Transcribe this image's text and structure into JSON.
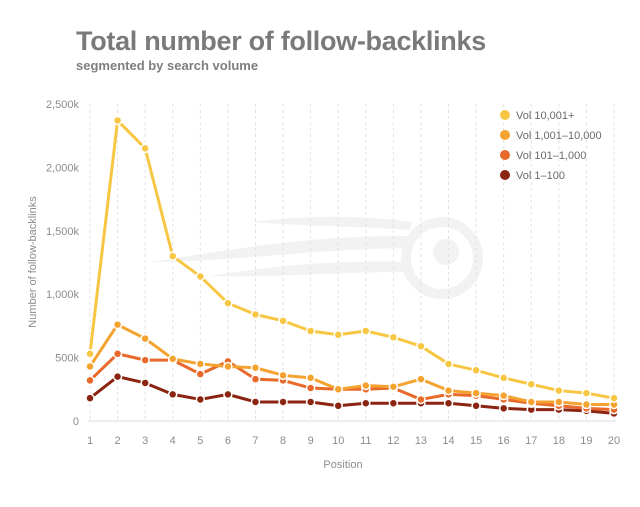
{
  "chart_data": {
    "type": "line",
    "title": "Total number of follow-backlinks",
    "subtitle": "segmented by search volume",
    "xlabel": "Position",
    "ylabel": "Number of follow-backlinks",
    "x": [
      1,
      2,
      3,
      4,
      5,
      6,
      7,
      8,
      9,
      10,
      11,
      12,
      13,
      14,
      15,
      16,
      17,
      18,
      19,
      20
    ],
    "ylim": [
      0,
      2500000
    ],
    "yticks": [
      0,
      500000,
      1000000,
      1500000,
      2000000,
      2500000
    ],
    "ytick_labels": [
      "0",
      "500k",
      "1,000k",
      "1,500k",
      "2,000k",
      "2,500k"
    ],
    "grid": "vertical dashed",
    "legend_position": "top-right",
    "series": [
      {
        "name": "Vol 10,001+",
        "color": "#f7c744",
        "values": [
          530000,
          2370000,
          2150000,
          1300000,
          1140000,
          930000,
          840000,
          790000,
          710000,
          680000,
          710000,
          660000,
          590000,
          450000,
          400000,
          340000,
          290000,
          240000,
          220000,
          180000
        ]
      },
      {
        "name": "Vol 1,001–10,000",
        "color": "#f5a330",
        "values": [
          430000,
          760000,
          650000,
          490000,
          450000,
          430000,
          420000,
          360000,
          340000,
          250000,
          280000,
          270000,
          330000,
          240000,
          220000,
          200000,
          150000,
          150000,
          130000,
          130000
        ]
      },
      {
        "name": "Vol 101–1,000",
        "color": "#e8692a",
        "values": [
          320000,
          530000,
          480000,
          480000,
          370000,
          470000,
          330000,
          320000,
          260000,
          250000,
          250000,
          260000,
          170000,
          210000,
          200000,
          170000,
          140000,
          120000,
          100000,
          90000
        ]
      },
      {
        "name": "Vol 1–100",
        "color": "#8b2410",
        "values": [
          180000,
          350000,
          300000,
          210000,
          170000,
          210000,
          150000,
          150000,
          150000,
          120000,
          140000,
          140000,
          140000,
          140000,
          120000,
          100000,
          90000,
          90000,
          80000,
          60000
        ]
      }
    ]
  }
}
